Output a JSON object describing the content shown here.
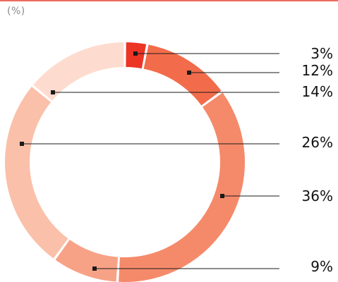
{
  "header": {
    "unit": "(%)"
  },
  "colors": {
    "top_rule": "#ee6a5f",
    "leader_line": "#1a1a1a"
  },
  "chart_data": {
    "type": "pie",
    "subtype": "donut",
    "title": "",
    "unit": "%",
    "slices": [
      {
        "value": 3,
        "label": "3%",
        "color": "#ec3525"
      },
      {
        "value": 12,
        "label": "12%",
        "color": "#f26c4b"
      },
      {
        "value": 36,
        "label": "36%",
        "color": "#f58a6a"
      },
      {
        "value": 9,
        "label": "9%",
        "color": "#f7a286"
      },
      {
        "value": 26,
        "label": "26%",
        "color": "#fac0aa"
      },
      {
        "value": 14,
        "label": "14%",
        "color": "#fddccf"
      }
    ],
    "legend": "none"
  }
}
